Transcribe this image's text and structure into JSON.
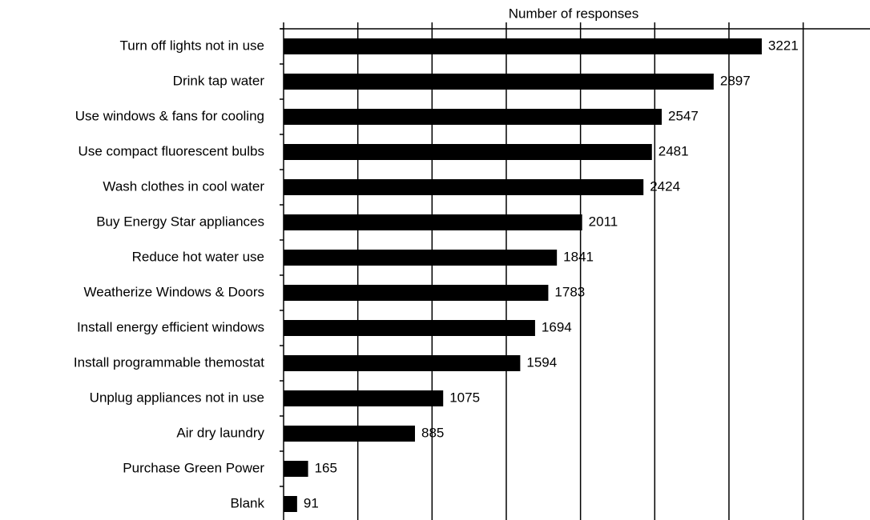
{
  "chart_data": {
    "type": "barh",
    "x_label": "Number of responses",
    "categories": [
      "Turn off lights not in use",
      "Drink tap water",
      "Use windows & fans for cooling",
      "Use compact fluorescent bulbs",
      "Wash clothes in cool water",
      "Buy Energy Star appliances",
      "Reduce hot water use",
      "Weatherize Windows & Doors",
      "Install energy efficient windows",
      "Install programmable themostat",
      "Unplug appliances not in use",
      "Air dry laundry",
      "Purchase Green Power",
      "Blank"
    ],
    "values": [
      3221,
      2897,
      2547,
      2481,
      2424,
      2011,
      1841,
      1783,
      1694,
      1594,
      1075,
      885,
      165,
      91
    ],
    "color": "#000000",
    "xlim": [
      0,
      3950
    ],
    "xticks": [
      0,
      500,
      1000,
      1500,
      2000,
      2500,
      3000,
      3500
    ],
    "grid": true
  }
}
